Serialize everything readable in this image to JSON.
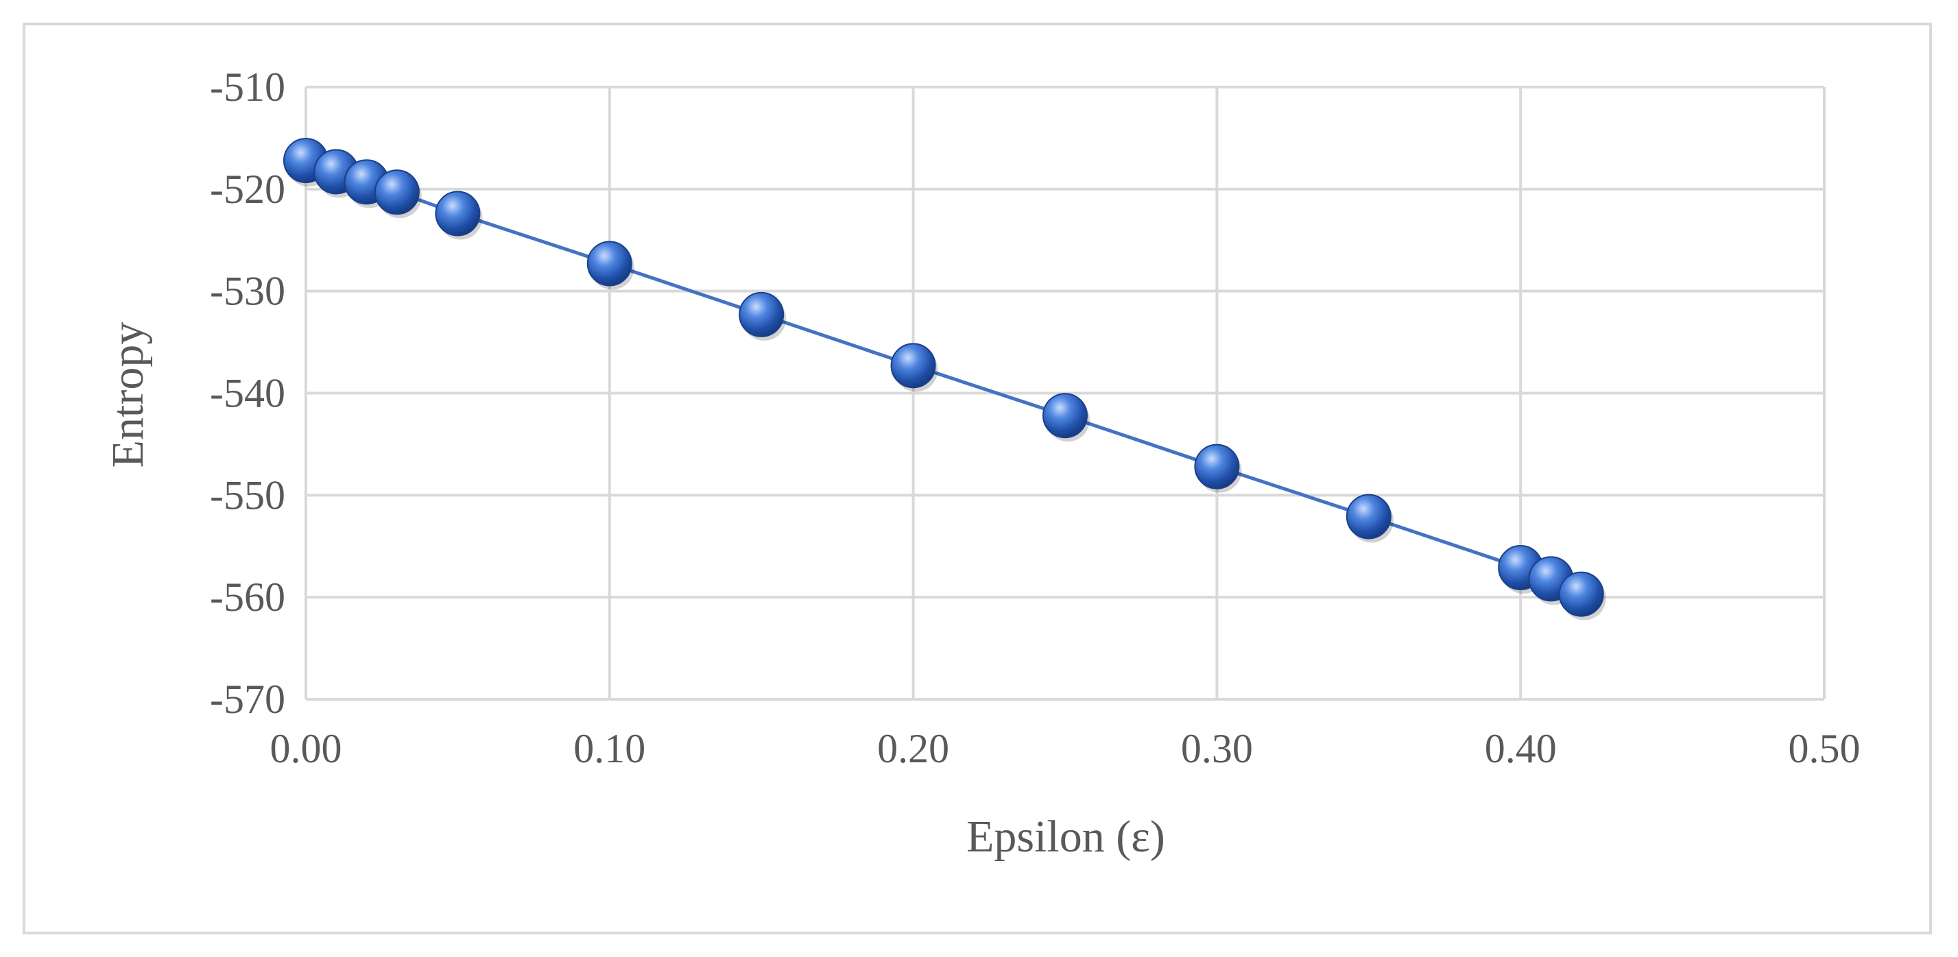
{
  "chart_data": {
    "type": "scatter",
    "title": "",
    "xlabel": "Epsilon (ε)",
    "ylabel": "Entropy",
    "xlim": [
      0,
      0.5
    ],
    "ylim": [
      -570,
      -510
    ],
    "xticks": [
      "0.00",
      "0.10",
      "0.20",
      "0.30",
      "0.40",
      "0.50"
    ],
    "yticks": [
      "-510",
      "-520",
      "-530",
      "-540",
      "-550",
      "-560",
      "-570"
    ],
    "grid": true,
    "legend": "none",
    "series": [
      {
        "color": "#4472c4",
        "x": [
          0.0,
          0.01,
          0.02,
          0.03,
          0.05,
          0.1,
          0.15,
          0.2,
          0.25,
          0.3,
          0.35,
          0.4,
          0.41,
          0.42
        ],
        "y": [
          -517.2,
          -518.3,
          -519.3,
          -520.3,
          -522.4,
          -527.3,
          -532.3,
          -537.3,
          -542.2,
          -547.2,
          -552.1,
          -557.1,
          -558.2,
          -559.7
        ]
      }
    ]
  }
}
